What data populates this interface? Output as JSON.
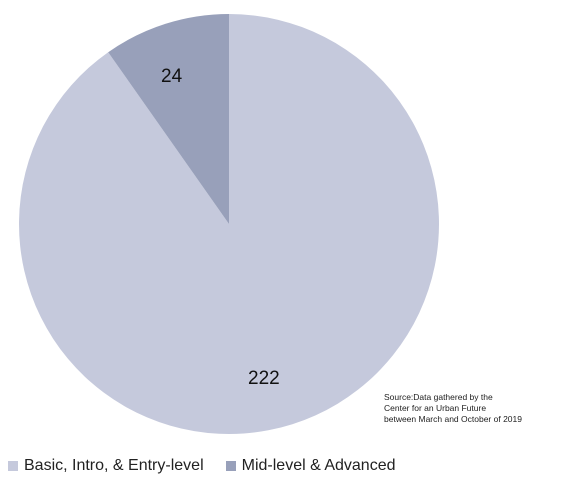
{
  "chart_data": {
    "type": "pie",
    "slices": [
      {
        "label": "Basic, Intro, & Entry-level",
        "value": 222,
        "color": "#c5c9dc"
      },
      {
        "label": "Mid-level & Advanced",
        "value": 24,
        "color": "#98a0ba"
      }
    ],
    "data_labels": [
      "222",
      "24"
    ],
    "legend": {
      "placement": "bottom-left",
      "entries": [
        "Basic, Intro, & Entry-level",
        "Mid-level & Advanced"
      ]
    },
    "title": "",
    "source_lines": [
      "Source:Data gathered by the",
      "Center for an Urban Future",
      "between March and October of 2019"
    ]
  }
}
